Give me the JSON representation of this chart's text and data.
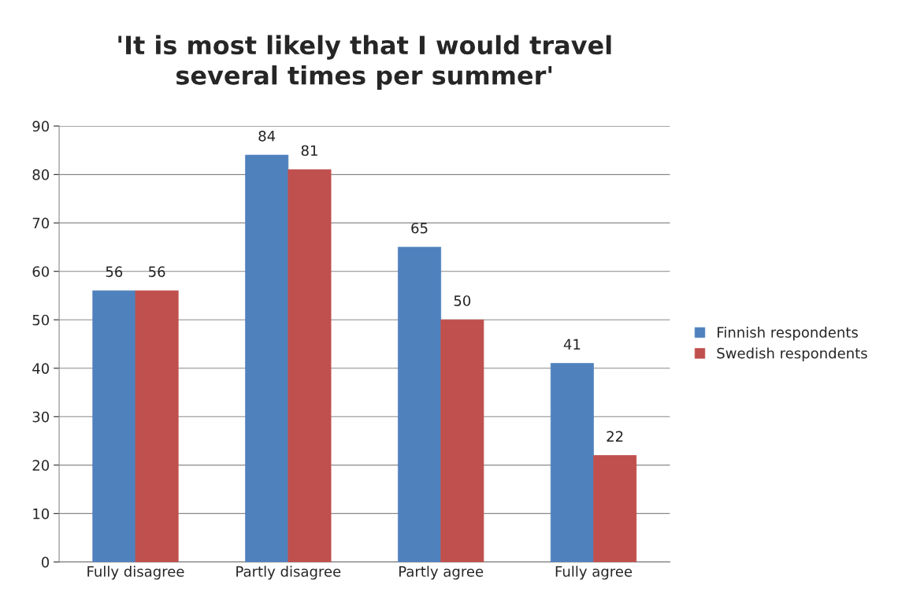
{
  "chart_data": {
    "type": "bar",
    "title": "'It is most likely that I would travel\nseveral times per summer'",
    "categories": [
      "Fully disagree",
      "Partly disagree",
      "Partly agree",
      "Fully agree"
    ],
    "series": [
      {
        "name": "Finnish respondents",
        "color": "#4f81bd",
        "values": [
          56,
          84,
          65,
          41
        ]
      },
      {
        "name": "Swedish respondents",
        "color": "#c0504d",
        "values": [
          56,
          81,
          50,
          22
        ]
      }
    ],
    "ylim": [
      0,
      90
    ],
    "yticks": [
      0,
      10,
      20,
      30,
      40,
      50,
      60,
      70,
      80,
      90
    ],
    "grid": "y",
    "legend": "right",
    "data_labels": true
  }
}
